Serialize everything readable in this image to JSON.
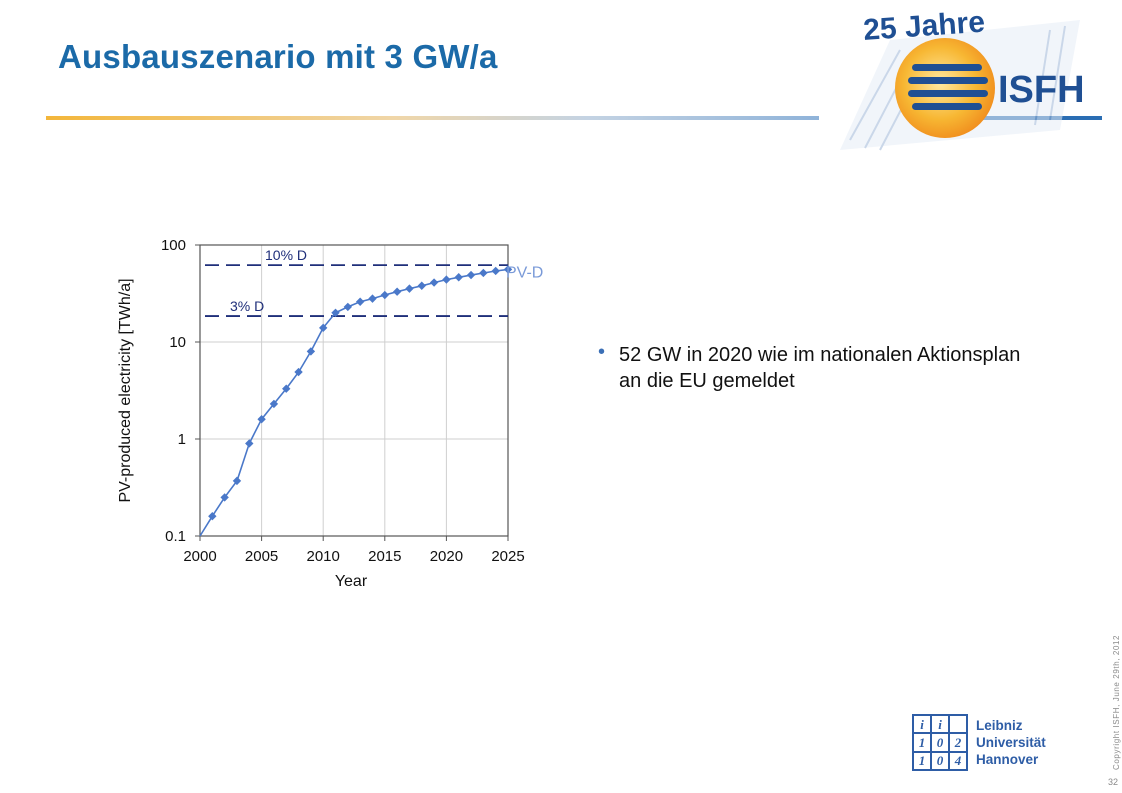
{
  "slide": {
    "title": "Ausbauszenario mit 3 GW/a",
    "page_number": "32",
    "copyright": "Copyright ISFH, June 29th, 2012"
  },
  "logo": {
    "top_text": "25 Jahre",
    "name": "ISFH"
  },
  "university_logo": {
    "lines": [
      "Leibniz",
      "Universität",
      "Hannover"
    ],
    "blocks": [
      "i",
      "i",
      "",
      "1",
      "0",
      "2",
      "1",
      "0",
      "4"
    ]
  },
  "bullets": [
    "52 GW in 2020 wie im nationalen Aktionsplan an die EU gemeldet"
  ],
  "chart_data": {
    "type": "line",
    "x_scale": "linear",
    "y_scale": "log",
    "xlabel": "Year",
    "ylabel": "PV-produced electricity [TWh/a]",
    "xlim": [
      2000,
      2025
    ],
    "ylim": [
      0.1,
      100
    ],
    "x_ticks": [
      "2000",
      "2005",
      "2010",
      "2015",
      "2020",
      "2025"
    ],
    "y_ticks": [
      "0.1",
      "1",
      "10",
      "100"
    ],
    "grid": true,
    "series": [
      {
        "name": "PV-D",
        "color": "#4a78c9",
        "x": [
          2001,
          2002,
          2003,
          2004,
          2005,
          2006,
          2007,
          2008,
          2009,
          2010,
          2011,
          2012,
          2013,
          2014,
          2015,
          2016,
          2017,
          2018,
          2019,
          2020,
          2021,
          2022,
          2023,
          2024,
          2025
        ],
        "y": [
          0.16,
          0.25,
          0.37,
          0.9,
          1.6,
          2.3,
          3.3,
          4.9,
          8.0,
          14.0,
          20.0,
          23.0,
          26.0,
          28.0,
          30.5,
          33.0,
          35.5,
          38.0,
          41.0,
          44.0,
          46.5,
          49.0,
          51.5,
          54.0,
          56.0
        ]
      }
    ],
    "reference_lines": [
      {
        "label": "10% D",
        "y": 62,
        "color": "#1f2f7a"
      },
      {
        "label": "3% D",
        "y": 18.5,
        "color": "#1f2f7a"
      }
    ],
    "series_label_color": "#7a9ad8",
    "axis_color": "#555555",
    "grid_color": "#cfcfcf"
  }
}
